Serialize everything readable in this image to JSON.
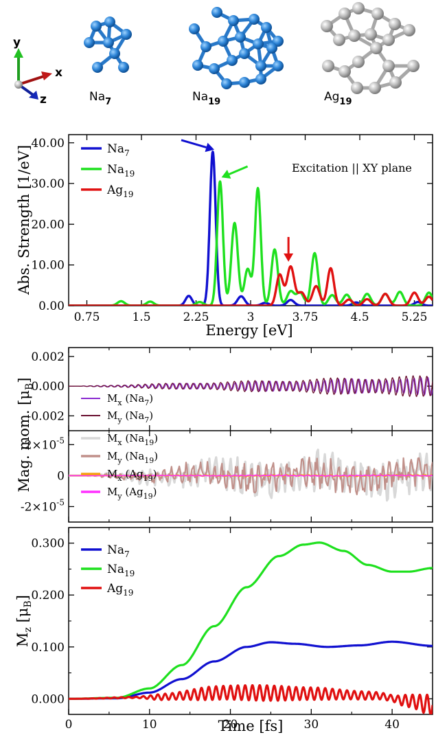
{
  "clusters": [
    {
      "id": "na7",
      "label": "Na",
      "sub": "7",
      "color": "#3a8fd9"
    },
    {
      "id": "na19",
      "label": "Na",
      "sub": "19",
      "color": "#3a8fd9"
    },
    {
      "id": "ag19",
      "label": "Ag",
      "sub": "19",
      "color": "#b5b5b5"
    }
  ],
  "axes_triad": {
    "x": "x",
    "y": "y",
    "z": "z"
  },
  "chart_data": [
    {
      "id": "spectrum",
      "type": "line",
      "xlabel": "Energy [eV]",
      "ylabel": "Abs. Strength  [1/eV]",
      "annotation": "Excitation || XY plane",
      "xlim": [
        0.5,
        5.5
      ],
      "ylim": [
        0,
        42
      ],
      "xticks": [
        0.75,
        1.5,
        2.25,
        3,
        3.75,
        4.5,
        5.25
      ],
      "xtick_labels": [
        "0.75",
        "1.5",
        "2.25",
        "3",
        "3.75",
        "4.5",
        "5.25"
      ],
      "yticks": [
        0,
        10,
        20,
        30,
        40
      ],
      "ytick_labels": [
        "0.00",
        "10.00",
        "20.00",
        "30.00",
        "40.00"
      ],
      "legend_position": "top-left",
      "series": [
        {
          "name": "Na",
          "sub": "7",
          "color": "#1010d0",
          "peaks": [
            [
              2.15,
              2.4,
              0.045
            ],
            [
              2.48,
              37.8,
              0.04
            ],
            [
              2.87,
              2.3,
              0.05
            ],
            [
              3.2,
              0.7,
              0.05
            ],
            [
              3.55,
              1.4,
              0.05
            ],
            [
              4.45,
              0.8,
              0.05
            ],
            [
              5.3,
              0.9,
              0.05
            ]
          ]
        },
        {
          "name": "Na",
          "sub": "19",
          "color": "#1ee01e",
          "peaks": [
            [
              1.22,
              1.1,
              0.05
            ],
            [
              1.62,
              1.0,
              0.05
            ],
            [
              2.3,
              0.9,
              0.05
            ],
            [
              2.58,
              30.5,
              0.04
            ],
            [
              2.78,
              20.3,
              0.045
            ],
            [
              2.96,
              9.0,
              0.045
            ],
            [
              3.1,
              28.8,
              0.04
            ],
            [
              3.33,
              13.8,
              0.045
            ],
            [
              3.55,
              3.5,
              0.05
            ],
            [
              3.68,
              3.2,
              0.05
            ],
            [
              3.88,
              12.9,
              0.045
            ],
            [
              4.12,
              2.6,
              0.05
            ],
            [
              4.32,
              2.7,
              0.05
            ],
            [
              4.6,
              2.9,
              0.05
            ],
            [
              4.85,
              2.9,
              0.05
            ],
            [
              5.05,
              3.4,
              0.05
            ],
            [
              5.45,
              3.2,
              0.05
            ]
          ]
        },
        {
          "name": "Ag",
          "sub": "19",
          "color": "#e01010",
          "peaks": [
            [
              3.4,
              7.6,
              0.045
            ],
            [
              3.55,
              9.6,
              0.05
            ],
            [
              3.7,
              3.2,
              0.05
            ],
            [
              3.9,
              4.8,
              0.05
            ],
            [
              4.1,
              9.2,
              0.045
            ],
            [
              4.35,
              1.5,
              0.05
            ],
            [
              4.6,
              1.6,
              0.05
            ],
            [
              4.85,
              2.9,
              0.05
            ],
            [
              5.25,
              3.2,
              0.05
            ],
            [
              5.45,
              2.2,
              0.05
            ]
          ]
        }
      ],
      "arrows": [
        {
          "color": "#1010d0",
          "target_x": 2.5,
          "target_y": 38.3
        },
        {
          "color": "#1ee01e",
          "target_x": 2.6,
          "target_y": 31.5
        },
        {
          "color": "#e01010",
          "target_x": 3.52,
          "target_y": 10.8
        }
      ]
    },
    {
      "id": "mag_na7",
      "type": "line",
      "xlim": [
        0,
        45
      ],
      "ylim": [
        -0.003,
        0.0026
      ],
      "yticks": [
        -0.002,
        0,
        0.002
      ],
      "ytick_labels": [
        "-0.002",
        "0.000",
        "0.002"
      ],
      "legend_position": "bottom-left",
      "series": [
        {
          "name": "M",
          "sub": "x",
          "suffix": " (Na",
          "suffix_sub": "7",
          "color": "#8a2ad0",
          "amplitude": 0.0006,
          "period": 0.85,
          "growth": "linear"
        },
        {
          "name": "M",
          "sub": "y",
          "suffix": " (Na",
          "suffix_sub": "7",
          "color": "#6a1030",
          "amplitude": 0.0007,
          "period": 0.85,
          "growth": "linear"
        }
      ]
    },
    {
      "id": "mag_19",
      "type": "line",
      "xlim": [
        0,
        45
      ],
      "ylim": [
        -3e-05,
        2.9e-05
      ],
      "yticks": [
        -2e-05,
        0,
        2e-05
      ],
      "ytick_labels": [
        "-2×10",
        "0",
        "2×10"
      ],
      "ytick_exp": [
        "-5",
        "",
        "-5"
      ],
      "ylabel": "Mag. mom. [μ",
      "ylabel_sub": "B",
      "legend_position": "left",
      "series": [
        {
          "name": "M",
          "sub": "x",
          "suffix": " (Na",
          "suffix_sub": "19",
          "color": "#d8d8d8"
        },
        {
          "name": "M",
          "sub": "y",
          "suffix": " (Na",
          "suffix_sub": "19",
          "color": "#c0908a"
        },
        {
          "name": "M",
          "sub": "x",
          "suffix": " (Ag",
          "suffix_sub": "19",
          "color": "#f5a010"
        },
        {
          "name": "M",
          "sub": "y",
          "suffix": " (Ag",
          "suffix_sub": "19",
          "color": "#ff30ff"
        }
      ]
    },
    {
      "id": "mz",
      "type": "line",
      "xlabel": "Time [fs]",
      "ylabel": "M",
      "ylabel_sub": "z",
      "ylabel_tail": " [μ",
      "ylabel_tail_sub": "B",
      "xlim": [
        0,
        45
      ],
      "ylim": [
        -0.03,
        0.33
      ],
      "xticks": [
        0,
        10,
        20,
        30,
        40
      ],
      "xtick_labels": [
        "0",
        "10",
        "20",
        "30",
        "40"
      ],
      "yticks": [
        0,
        0.1,
        0.2,
        0.3
      ],
      "ytick_labels": [
        "0.000",
        "0.100",
        "0.200",
        "0.300"
      ],
      "legend_position": "top-left",
      "series": [
        {
          "name": "Na",
          "sub": "7",
          "color": "#1010d0",
          "points": [
            [
              0,
              0
            ],
            [
              6,
              0.001
            ],
            [
              10,
              0.012
            ],
            [
              14,
              0.038
            ],
            [
              18,
              0.072
            ],
            [
              22,
              0.1
            ],
            [
              25,
              0.109
            ],
            [
              28,
              0.106
            ],
            [
              32,
              0.1
            ],
            [
              36,
              0.103
            ],
            [
              40,
              0.11
            ],
            [
              45,
              0.102
            ]
          ]
        },
        {
          "name": "Na",
          "sub": "19",
          "color": "#1ee01e",
          "points": [
            [
              0,
              0
            ],
            [
              6,
              0.002
            ],
            [
              10,
              0.02
            ],
            [
              14,
              0.065
            ],
            [
              18,
              0.14
            ],
            [
              22,
              0.215
            ],
            [
              26,
              0.275
            ],
            [
              29,
              0.297
            ],
            [
              31,
              0.301
            ],
            [
              34,
              0.285
            ],
            [
              37,
              0.258
            ],
            [
              40,
              0.245
            ],
            [
              42,
              0.245
            ],
            [
              45,
              0.252
            ]
          ]
        },
        {
          "name": "Ag",
          "sub": "19",
          "color": "#e01010",
          "envelope": [
            [
              0,
              0
            ],
            [
              8,
              0.001
            ],
            [
              12,
              0.006
            ],
            [
              18,
              0.013
            ],
            [
              24,
              0.015
            ],
            [
              30,
              0.012
            ],
            [
              36,
              0.008
            ],
            [
              40,
              0.006
            ],
            [
              42,
              0.012
            ],
            [
              45,
              0.02
            ]
          ],
          "baseline": [
            [
              0,
              0
            ],
            [
              10,
              0.003
            ],
            [
              20,
              0.012
            ],
            [
              30,
              0.01
            ],
            [
              38,
              0.006
            ],
            [
              42,
              -0.004
            ],
            [
              45,
              -0.012
            ]
          ],
          "period": 0.9
        }
      ]
    }
  ]
}
